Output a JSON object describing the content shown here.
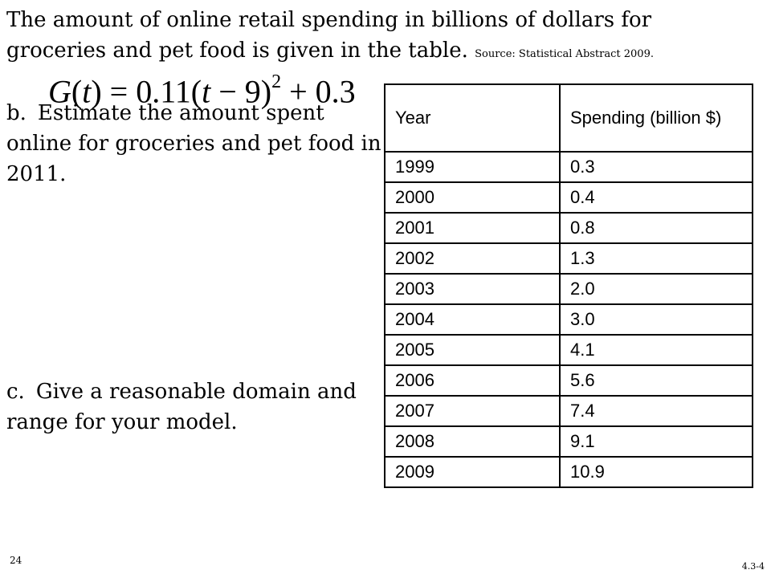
{
  "intro": {
    "text": "The amount of online retail spending in billions of dollars for groceries and pet food is given in the table.",
    "source": "Source: Statistical Abstract 2009."
  },
  "formula": {
    "lhs": "G(t) = ",
    "rhs_prefix": "0.11(t − 9)",
    "exponent": "2",
    "rhs_suffix": " + 0.3"
  },
  "part_b": {
    "letter": "b.",
    "text": "Estimate the amount spent online for groceries and pet food in 2011."
  },
  "part_c": {
    "letter": "c.",
    "text": "Give a reasonable domain and range for your model."
  },
  "table": {
    "headers": [
      "Year",
      "Spending (billion $)"
    ],
    "rows": [
      [
        "1999",
        "0.3"
      ],
      [
        "2000",
        "0.4"
      ],
      [
        "2001",
        "0.8"
      ],
      [
        "2002",
        "1.3"
      ],
      [
        "2003",
        "2.0"
      ],
      [
        "2004",
        "3.0"
      ],
      [
        "2005",
        "4.1"
      ],
      [
        "2006",
        "5.6"
      ],
      [
        "2007",
        "7.4"
      ],
      [
        "2008",
        "9.1"
      ],
      [
        "2009",
        "10.9"
      ]
    ]
  },
  "footer": {
    "page_number": "24",
    "slide_code": "4.3-4"
  }
}
